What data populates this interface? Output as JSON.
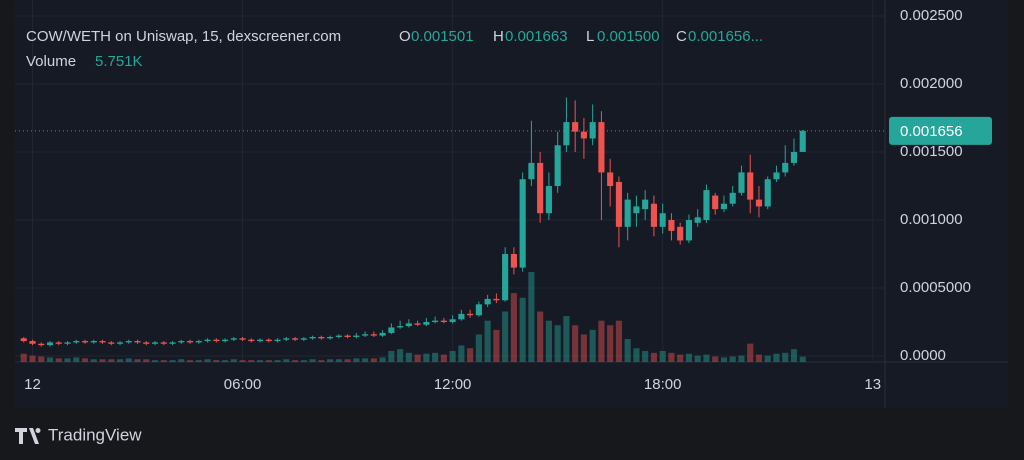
{
  "chart_data": {
    "type": "candlestick",
    "legend": {
      "symbol": "COW/WETH on Uniswap, 15, dexscreener.com",
      "o_label": "O",
      "o": "0.001501",
      "h_label": "H",
      "h": "0.001663",
      "l_label": "L",
      "l": "0.001500",
      "c_label": "C",
      "c": "0.001656...",
      "volume_label": "Volume",
      "volume": "5.751K"
    },
    "branding": "TradingView",
    "up_color": "#26a69a",
    "down_color": "#ef5350",
    "xlim": [
      -0.5,
      24.35
    ],
    "xticks": [
      {
        "value": 0,
        "label": "12"
      },
      {
        "value": 6,
        "label": "06:00"
      },
      {
        "value": 12,
        "label": "12:00"
      },
      {
        "value": 18,
        "label": "18:00"
      },
      {
        "value": 24,
        "label": "13"
      }
    ],
    "ylim": [
      -4.4e-05,
      0.002618
    ],
    "yticks": [
      {
        "value": 0,
        "label": "0.0000"
      },
      {
        "value": 0.0005,
        "label": "0.0005000"
      },
      {
        "value": 0.001,
        "label": "0.001000"
      },
      {
        "value": 0.0015,
        "label": "0.001500"
      },
      {
        "value": 0.002,
        "label": "0.002000"
      },
      {
        "value": 0.0025,
        "label": "0.002500"
      }
    ],
    "grid": true,
    "x": [
      -0.25,
      0,
      0.25,
      0.5,
      0.75,
      1,
      1.25,
      1.5,
      1.75,
      2,
      2.25,
      2.5,
      2.75,
      3,
      3.25,
      3.5,
      3.75,
      4,
      4.25,
      4.5,
      4.75,
      5,
      5.25,
      5.5,
      5.75,
      6,
      6.25,
      6.5,
      6.75,
      7,
      7.25,
      7.5,
      7.75,
      8,
      8.25,
      8.5,
      8.75,
      9,
      9.25,
      9.5,
      9.75,
      10,
      10.25,
      10.5,
      10.75,
      11,
      11.25,
      11.5,
      11.75,
      12,
      12.25,
      12.5,
      12.75,
      13,
      13.25,
      13.5,
      13.75,
      14,
      14.25,
      14.5,
      14.75,
      15,
      15.25,
      15.5,
      15.75,
      16,
      16.25,
      16.5,
      16.75,
      17,
      17.25,
      17.5,
      17.75,
      18,
      18.25,
      18.5,
      18.75,
      19,
      19.25,
      19.5,
      19.75,
      20,
      20.25,
      20.5,
      20.75,
      21,
      21.25,
      21.5,
      21.75,
      22
    ],
    "open": [
      0.00013,
      0.00011,
      9e-05,
      8e-05,
      0.0001,
      9e-05,
      0.0001,
      0.00011,
      0.0001,
      0.00011,
      0.0001,
      9e-05,
      0.0001,
      0.00011,
      0.0001,
      9e-05,
      0.0001,
      9e-05,
      0.0001,
      0.00011,
      0.0001,
      0.00011,
      0.00012,
      0.00011,
      0.00012,
      0.00013,
      0.00012,
      0.00011,
      0.00012,
      0.00011,
      0.00012,
      0.00013,
      0.00012,
      0.00013,
      0.00014,
      0.00013,
      0.00014,
      0.00015,
      0.00014,
      0.00015,
      0.00016,
      0.00015,
      0.00017,
      0.00021,
      0.00022,
      0.00024,
      0.00023,
      0.00025,
      0.00026,
      0.00025,
      0.00027,
      0.00031,
      0.0003,
      0.00038,
      0.00042,
      0.00041,
      0.00075,
      0.00065,
      0.0013,
      0.00142,
      0.00105,
      0.00125,
      0.00155,
      0.00172,
      0.00165,
      0.0016,
      0.00172,
      0.00135,
      0.00128,
      0.00095,
      0.00105,
      0.00108,
      0.00112,
      0.00095,
      0.001,
      0.00095,
      0.00085,
      0.00098,
      0.001,
      0.00118,
      0.00108,
      0.00112,
      0.0012,
      0.00135,
      0.00115,
      0.0011,
      0.0013,
      0.00135,
      0.00142,
      0.001501
    ],
    "high": [
      0.00014,
      0.00012,
      0.0001,
      0.00011,
      0.00011,
      0.00011,
      0.00012,
      0.00012,
      0.00012,
      0.00012,
      0.00011,
      0.00011,
      0.00012,
      0.00012,
      0.00011,
      0.00011,
      0.00011,
      0.00011,
      0.00012,
      0.00012,
      0.00012,
      0.00013,
      0.00013,
      0.00013,
      0.00014,
      0.00014,
      0.00013,
      0.00013,
      0.00013,
      0.00013,
      0.00014,
      0.00014,
      0.00014,
      0.00015,
      0.00015,
      0.00015,
      0.00016,
      0.00016,
      0.00017,
      0.00018,
      0.00018,
      0.00019,
      0.00024,
      0.00026,
      0.00027,
      0.00026,
      0.00028,
      0.00029,
      0.00028,
      0.0003,
      0.00034,
      0.00034,
      0.0004,
      0.00045,
      0.00046,
      0.0008,
      0.0008,
      0.00135,
      0.00173,
      0.0015,
      0.00135,
      0.00165,
      0.0019,
      0.00188,
      0.00175,
      0.00185,
      0.0018,
      0.00145,
      0.00132,
      0.0012,
      0.00118,
      0.00122,
      0.00118,
      0.00112,
      0.00105,
      0.00098,
      0.00104,
      0.00108,
      0.00126,
      0.0012,
      0.00118,
      0.00125,
      0.0014,
      0.00148,
      0.00125,
      0.00132,
      0.0014,
      0.00155,
      0.0016,
      0.001663
    ],
    "low": [
      0.0001,
      8e-05,
      7e-05,
      7e-05,
      8e-05,
      8e-05,
      9e-05,
      9e-05,
      9e-05,
      9e-05,
      8e-05,
      8e-05,
      9e-05,
      9e-05,
      8e-05,
      8e-05,
      8e-05,
      8e-05,
      9e-05,
      9e-05,
      9e-05,
      0.0001,
      0.0001,
      0.0001,
      0.00011,
      0.00011,
      0.0001,
      0.0001,
      0.0001,
      0.0001,
      0.00011,
      0.00011,
      0.00011,
      0.00012,
      0.00012,
      0.00012,
      0.00013,
      0.00013,
      0.00013,
      0.00014,
      0.00014,
      0.00014,
      0.00016,
      0.0002,
      0.00021,
      0.00022,
      0.00022,
      0.00024,
      0.00024,
      0.00024,
      0.00026,
      0.00028,
      0.00029,
      0.00036,
      0.00039,
      0.0004,
      0.0006,
      0.00062,
      0.00125,
      0.00098,
      0.001,
      0.0012,
      0.0015,
      0.0015,
      0.00145,
      0.00155,
      0.001,
      0.0011,
      0.0008,
      0.00085,
      0.00095,
      0.001,
      0.00088,
      0.0009,
      0.00085,
      0.00082,
      0.00083,
      0.00095,
      0.00098,
      0.00104,
      0.00106,
      0.0011,
      0.00118,
      0.00105,
      0.00102,
      0.00108,
      0.00128,
      0.00132,
      0.0014,
      0.0015
    ],
    "close": [
      0.00011,
      9e-05,
      8e-05,
      0.0001,
      9e-05,
      0.0001,
      0.00011,
      0.0001,
      0.00011,
      0.0001,
      9e-05,
      0.0001,
      0.00011,
      0.0001,
      9e-05,
      0.0001,
      9e-05,
      0.0001,
      0.00011,
      0.0001,
      0.00011,
      0.00012,
      0.00011,
      0.00012,
      0.00013,
      0.00012,
      0.00011,
      0.00012,
      0.00011,
      0.00012,
      0.00013,
      0.00012,
      0.00013,
      0.00014,
      0.00013,
      0.00014,
      0.00015,
      0.00014,
      0.00015,
      0.00016,
      0.00015,
      0.00017,
      0.00021,
      0.00022,
      0.00024,
      0.00023,
      0.00025,
      0.00026,
      0.00025,
      0.00027,
      0.00031,
      0.0003,
      0.00038,
      0.00042,
      0.00041,
      0.00075,
      0.00065,
      0.0013,
      0.00142,
      0.00105,
      0.00125,
      0.00155,
      0.00172,
      0.00165,
      0.0016,
      0.00172,
      0.00135,
      0.00125,
      0.00095,
      0.00115,
      0.0011,
      0.00115,
      0.00095,
      0.00105,
      0.00092,
      0.00085,
      0.001,
      0.00102,
      0.00122,
      0.00108,
      0.00112,
      0.0012,
      0.00135,
      0.00115,
      0.0011,
      0.0013,
      0.00135,
      0.00142,
      0.0015,
      0.001656
    ],
    "volume": [
      9000,
      7000,
      6000,
      5000,
      4000,
      4000,
      5000,
      4000,
      3000,
      3000,
      3000,
      3000,
      4000,
      3000,
      3000,
      2000,
      2000,
      2000,
      3000,
      2000,
      2000,
      3000,
      2000,
      2000,
      3000,
      2000,
      2000,
      2000,
      2000,
      2000,
      3000,
      2000,
      2000,
      3000,
      2000,
      3000,
      3000,
      3000,
      4000,
      4000,
      4000,
      5000,
      12000,
      14000,
      10000,
      8000,
      9000,
      10000,
      8000,
      12000,
      18000,
      15000,
      30000,
      45000,
      35000,
      55000,
      75000,
      70000,
      98000,
      55000,
      45000,
      40000,
      50000,
      40000,
      30000,
      35000,
      45000,
      40000,
      45000,
      25000,
      15000,
      12000,
      10000,
      12000,
      10000,
      8000,
      9000,
      7000,
      8000,
      6000,
      5000,
      6000,
      7000,
      20000,
      8000,
      7000,
      9000,
      10000,
      14000,
      5751
    ]
  }
}
